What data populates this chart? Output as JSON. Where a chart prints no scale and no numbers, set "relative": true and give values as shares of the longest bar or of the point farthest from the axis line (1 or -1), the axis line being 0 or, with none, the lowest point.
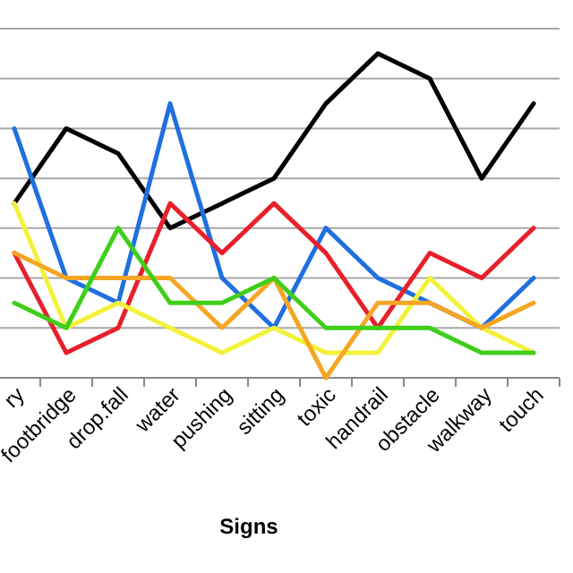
{
  "chart_data": {
    "type": "line",
    "relative": true,
    "xlabel": "Signs",
    "grid": true,
    "categories": [
      "ry",
      "footbridge",
      "drop.fall",
      "water",
      "pushing",
      "sitting",
      "toxic",
      "handrail",
      "obstacle",
      "walkway",
      "touch"
    ],
    "series": [
      {
        "color": "#000000",
        "values": [
          0.538,
          0.769,
          0.692,
          0.462,
          0.538,
          0.615,
          0.846,
          1,
          0.923,
          0.615,
          0.846
        ]
      },
      {
        "color": "#1f6fe0",
        "values": [
          0.769,
          0.308,
          0.231,
          0.846,
          0.308,
          0.154,
          0.462,
          0.308,
          0.231,
          0.154,
          0.308
        ]
      },
      {
        "color": "#e8202a",
        "values": [
          0.385,
          0.077,
          0.154,
          0.538,
          0.385,
          0.538,
          0.385,
          0.154,
          0.385,
          0.308,
          0.462
        ]
      },
      {
        "color": "#f2f23a",
        "values": [
          0.538,
          0.154,
          0.231,
          0.154,
          0.077,
          0.154,
          0.077,
          0.077,
          0.308,
          0.154,
          0.077
        ]
      },
      {
        "color": "#f5a623",
        "values": [
          0.385,
          0.308,
          0.308,
          0.308,
          0.154,
          0.308,
          0,
          0.231,
          0.231,
          0.154,
          0.231
        ]
      },
      {
        "color": "#3fcf1a",
        "values": [
          0.231,
          0.154,
          0.462,
          0.231,
          0.231,
          0.308,
          0.154,
          0.154,
          0.154,
          0.077,
          0.077
        ]
      }
    ]
  }
}
